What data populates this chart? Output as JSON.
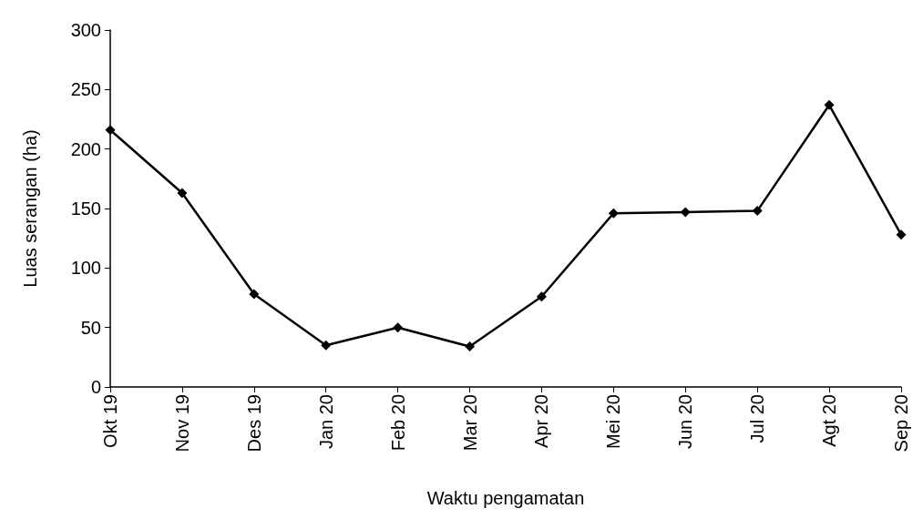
{
  "chart_data": {
    "type": "line",
    "xlabel": "Waktu pengamatan",
    "ylabel": "Luas serangan (ha)",
    "categories": [
      "Okt 19",
      "Nov 19",
      "Des 19",
      "Jan 20",
      "Feb 20",
      "Mar 20",
      "Apr 20",
      "Mei 20",
      "Jun 20",
      "Jul 20",
      "Agt 20",
      "Sep 20"
    ],
    "values": [
      216,
      163,
      78,
      35,
      50,
      34,
      76,
      146,
      147,
      148,
      237,
      128
    ],
    "color": "#000000",
    "marker": "diamond",
    "line_style": "solid",
    "grid": false,
    "ylim": [
      0,
      300
    ],
    "yticks": [
      0,
      50,
      100,
      150,
      200,
      250,
      300
    ]
  }
}
